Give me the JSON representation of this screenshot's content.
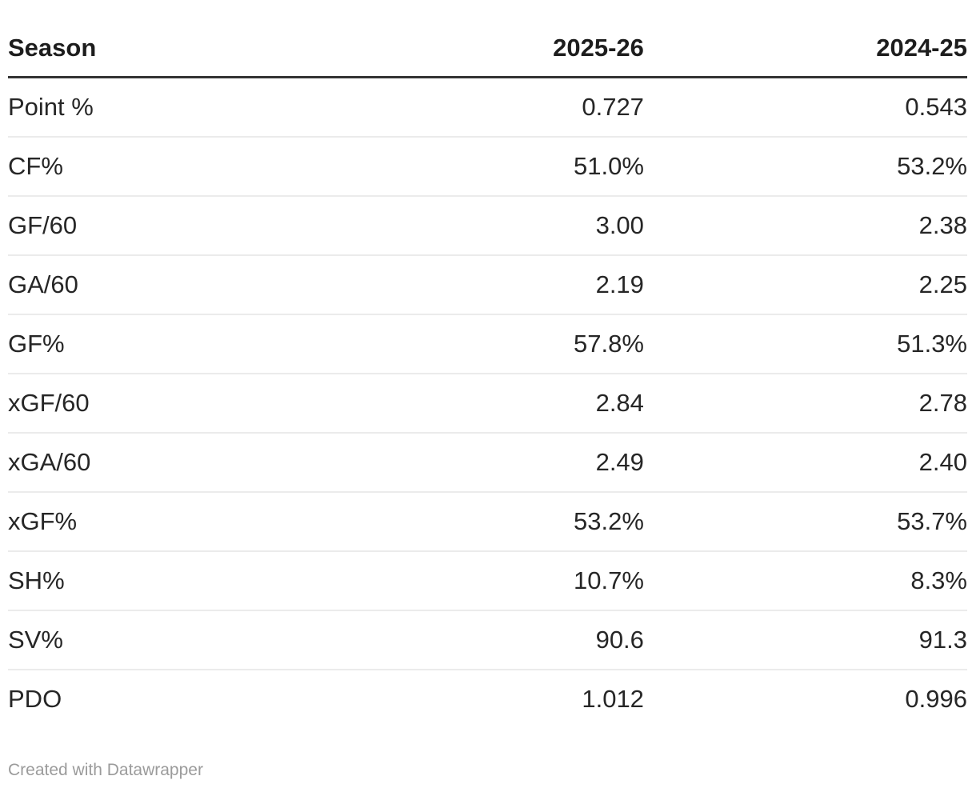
{
  "chart_data": {
    "type": "table",
    "columns": [
      "Season",
      "2025-26",
      "2024-25"
    ],
    "rows": [
      [
        "Point %",
        "0.727",
        "0.543"
      ],
      [
        "CF%",
        "51.0%",
        "53.2%"
      ],
      [
        "GF/60",
        "3.00",
        "2.38"
      ],
      [
        "GA/60",
        "2.19",
        "2.25"
      ],
      [
        "GF%",
        "57.8%",
        "51.3%"
      ],
      [
        "xGF/60",
        "2.84",
        "2.78"
      ],
      [
        "xGA/60",
        "2.49",
        "2.40"
      ],
      [
        "xGF%",
        "53.2%",
        "53.7%"
      ],
      [
        "SH%",
        "10.7%",
        "8.3%"
      ],
      [
        "SV%",
        "90.6",
        "91.3"
      ],
      [
        "PDO",
        "1.012",
        "0.996"
      ]
    ],
    "legend_position": "none",
    "grid": "horizontal-row-dividers"
  },
  "footer": {
    "attribution": "Created with Datawrapper"
  },
  "colors": {
    "background": "#ffffff",
    "header_text": "#1d1d1d",
    "body_text": "#262626",
    "header_rule": "#333333",
    "row_divider": "#ebebeb",
    "attribution_text": "#9b9b9b"
  }
}
